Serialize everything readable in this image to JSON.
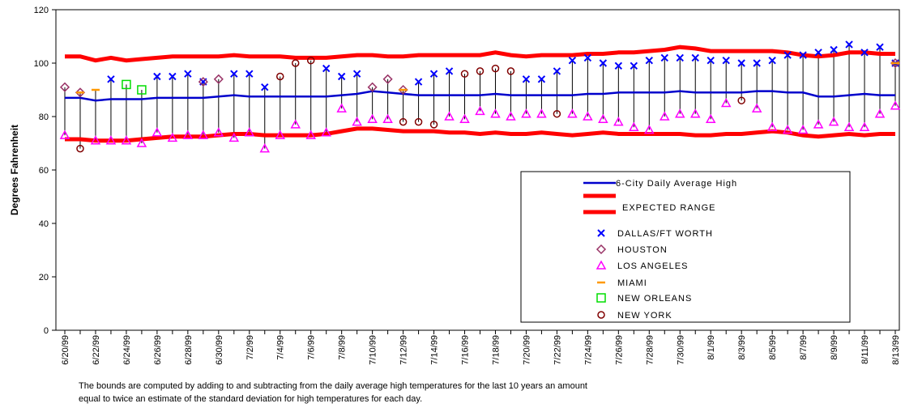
{
  "chart_data": {
    "type": "line",
    "ylabel": "Degrees Fahrenheit",
    "notes": [
      "The bounds are computed by adding to and subtracting from the daily average high temperatures for the last 10 years an amount",
      "equal to twice an estimate of the standard deviation for high temperatures for each day."
    ],
    "categories": [
      "6/20/99",
      null,
      "6/22/99",
      null,
      "6/24/99",
      null,
      "6/26/99",
      null,
      "6/28/99",
      null,
      "6/30/99",
      null,
      "7/2/99",
      null,
      "7/4/99",
      null,
      "7/6/99",
      null,
      "7/8/99",
      null,
      "7/10/99",
      null,
      "7/12/99",
      null,
      "7/14/99",
      null,
      "7/16/99",
      null,
      "7/18/99",
      null,
      "7/20/99",
      null,
      "7/22/99",
      null,
      "7/24/99",
      null,
      "7/26/99",
      null,
      "7/28/99",
      null,
      "7/30/99",
      null,
      "8/1/99",
      null,
      "8/3/99",
      null,
      "8/5/99",
      null,
      "8/7/99",
      null,
      "8/9/99",
      null,
      "8/11/99",
      null,
      "8/13/99"
    ],
    "ylim": [
      0,
      120
    ],
    "yticks": [
      0,
      20,
      40,
      60,
      80,
      100,
      120
    ],
    "series": [
      {
        "name": "6-City Daily Average High",
        "color": "#0000cc",
        "values": [
          87,
          87,
          86,
          86.5,
          86.5,
          86.5,
          87,
          87,
          87,
          87,
          87.5,
          88,
          87.5,
          87.5,
          87.5,
          87.5,
          87.5,
          87.5,
          88,
          88.5,
          89.5,
          89,
          88.5,
          88,
          88,
          88,
          88,
          88,
          88.5,
          88,
          88,
          88,
          88,
          88,
          88.5,
          88.5,
          89,
          89,
          89,
          89,
          89.5,
          89,
          89,
          89,
          89,
          89.5,
          89.5,
          89,
          89,
          87.5,
          87.5,
          88,
          88.5,
          88,
          88
        ]
      },
      {
        "name": null,
        "color": "#ff0000",
        "values": [
          102.5,
          102.5,
          101,
          102,
          101,
          101.5,
          102,
          102.5,
          102.5,
          102.5,
          102.5,
          103,
          102.5,
          102.5,
          102.5,
          102,
          102,
          102,
          102.5,
          103,
          103,
          102.5,
          102.5,
          103,
          103,
          103,
          103,
          103,
          104,
          103,
          102.5,
          103,
          103,
          103,
          103.5,
          103.5,
          104,
          104,
          104.5,
          105,
          106,
          105.5,
          104.5,
          104.5,
          104.5,
          104.5,
          104.5,
          104,
          103,
          102.5,
          103,
          104,
          104,
          103.5,
          103.5
        ]
      },
      {
        "name": "EXPECTED RANGE",
        "color": "#ff0000",
        "values": [
          71.5,
          71.5,
          71,
          71,
          71,
          71.5,
          72,
          72.5,
          72.5,
          72.5,
          73,
          73.5,
          73.5,
          73,
          73,
          73,
          73,
          73.5,
          74.5,
          75.5,
          75.5,
          75,
          74.5,
          74.5,
          74.5,
          74,
          74,
          73.5,
          74,
          73.5,
          73.5,
          74,
          73.5,
          73,
          73.5,
          74,
          73.5,
          73.5,
          73.5,
          73.5,
          73.5,
          73,
          73,
          73.5,
          73.5,
          74,
          74.5,
          74,
          73,
          72.5,
          73,
          73.5,
          73,
          73.5,
          73.5
        ]
      },
      {
        "name": "DALLAS/FT WORTH",
        "color": "#0000ff",
        "marker": "x",
        "values": [
          null,
          null,
          null,
          94,
          null,
          null,
          95,
          95,
          96,
          93,
          null,
          96,
          96,
          91,
          null,
          null,
          null,
          98,
          95,
          96,
          null,
          null,
          null,
          93,
          96,
          97,
          null,
          null,
          null,
          null,
          94,
          94,
          97,
          101,
          102,
          100,
          99,
          99,
          101,
          102,
          102,
          102,
          101,
          101,
          100,
          100,
          101,
          103,
          103,
          104,
          105,
          107,
          104,
          106,
          100
        ]
      },
      {
        "name": "HOUSTON",
        "color": "#993366",
        "marker": "diamond",
        "values": [
          91,
          89,
          null,
          null,
          null,
          null,
          null,
          null,
          null,
          93,
          94,
          null,
          null,
          null,
          null,
          null,
          null,
          null,
          null,
          null,
          91,
          94,
          90,
          null,
          null,
          null,
          null,
          null,
          null,
          null,
          null,
          null,
          null,
          null,
          null,
          null,
          null,
          null,
          null,
          null,
          null,
          null,
          null,
          null,
          null,
          null,
          null,
          null,
          null,
          null,
          null,
          null,
          null,
          null,
          100
        ]
      },
      {
        "name": "LOS ANGELES",
        "color": "#ff00ff",
        "marker": "triangle",
        "values": [
          73,
          null,
          71,
          71,
          71,
          70,
          74,
          72,
          73,
          73,
          74,
          72,
          74,
          68,
          73,
          77,
          73,
          74,
          83,
          78,
          79,
          79,
          null,
          null,
          null,
          80,
          79,
          82,
          81,
          80,
          81,
          81,
          null,
          81,
          80,
          79,
          78,
          76,
          75,
          80,
          81,
          81,
          79,
          85,
          null,
          83,
          76,
          75,
          75,
          77,
          78,
          76,
          76,
          81,
          84
        ]
      },
      {
        "name": "MIAMI",
        "color": "#ff9900",
        "marker": "dash",
        "values": [
          null,
          89,
          90,
          null,
          null,
          null,
          null,
          null,
          null,
          null,
          null,
          null,
          null,
          null,
          null,
          null,
          null,
          null,
          null,
          null,
          null,
          null,
          90,
          null,
          null,
          null,
          null,
          null,
          null,
          null,
          null,
          null,
          null,
          null,
          null,
          null,
          null,
          null,
          null,
          null,
          null,
          null,
          null,
          null,
          null,
          null,
          null,
          null,
          null,
          null,
          null,
          null,
          null,
          null,
          100
        ]
      },
      {
        "name": "NEW ORLEANS",
        "color": "#00dd00",
        "marker": "square",
        "values": [
          null,
          null,
          null,
          null,
          92,
          90,
          null,
          null,
          null,
          null,
          null,
          null,
          null,
          null,
          null,
          null,
          null,
          null,
          null,
          null,
          null,
          null,
          null,
          null,
          null,
          null,
          null,
          null,
          null,
          null,
          null,
          null,
          null,
          null,
          null,
          null,
          null,
          null,
          null,
          null,
          null,
          null,
          null,
          null,
          null,
          null,
          null,
          null,
          null,
          null,
          null,
          null,
          null,
          null,
          null
        ]
      },
      {
        "name": "NEW YORK",
        "color": "#800000",
        "marker": "circle",
        "values": [
          null,
          68,
          null,
          null,
          null,
          null,
          null,
          null,
          null,
          null,
          null,
          null,
          null,
          null,
          95,
          100,
          101,
          null,
          null,
          null,
          null,
          null,
          78,
          78,
          77,
          null,
          96,
          97,
          98,
          97,
          null,
          null,
          81,
          null,
          null,
          null,
          null,
          null,
          null,
          null,
          null,
          null,
          null,
          null,
          86,
          null,
          null,
          null,
          null,
          null,
          null,
          null,
          null,
          null,
          null
        ]
      }
    ]
  }
}
